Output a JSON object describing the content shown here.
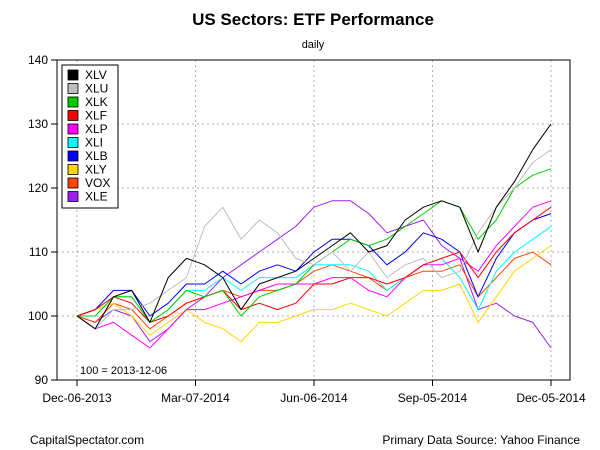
{
  "chart_data": {
    "type": "line",
    "title": "US Sectors: ETF Performance",
    "subtitle": "daily",
    "xlabel": "",
    "ylabel": "",
    "ylim": [
      90,
      140
    ],
    "yticks": [
      90,
      100,
      110,
      120,
      130,
      140
    ],
    "xlim": [
      "2013-12-06",
      "2014-12-05"
    ],
    "xticks": [
      "Dec-06-2013",
      "Mar-07-2014",
      "Jun-06-2014",
      "Sep-05-2014",
      "Dec-05-2014"
    ],
    "grid": true,
    "legend_position": "top-left",
    "baseline_note": "100 = 2013-12-06",
    "x": [
      "2013-12-06",
      "2013-12-20",
      "2014-01-03",
      "2014-01-17",
      "2014-01-31",
      "2014-02-14",
      "2014-02-28",
      "2014-03-14",
      "2014-03-28",
      "2014-04-11",
      "2014-04-25",
      "2014-05-09",
      "2014-05-23",
      "2014-06-06",
      "2014-06-20",
      "2014-07-04",
      "2014-07-18",
      "2014-08-01",
      "2014-08-15",
      "2014-08-29",
      "2014-09-12",
      "2014-09-26",
      "2014-10-10",
      "2014-10-24",
      "2014-11-07",
      "2014-11-21",
      "2014-12-05"
    ],
    "series": [
      {
        "name": "XLV",
        "color": "#000000",
        "values": [
          100,
          98,
          103,
          104,
          99,
          106,
          109,
          108,
          106,
          101,
          105,
          106,
          107,
          109,
          111,
          113,
          110,
          111,
          115,
          117,
          118,
          117,
          110,
          117,
          121,
          126,
          130
        ]
      },
      {
        "name": "XLU",
        "color": "#bebebe",
        "values": [
          100,
          98,
          101,
          101,
          102,
          104,
          106,
          114,
          117,
          112,
          115,
          113,
          109,
          108,
          110,
          107,
          110,
          106,
          108,
          109,
          106,
          107,
          113,
          117,
          120,
          124,
          126
        ]
      },
      {
        "name": "XLK",
        "color": "#00cd00",
        "values": [
          100,
          100,
          103,
          103,
          99,
          101,
          104,
          103,
          104,
          100,
          103,
          104,
          105,
          108,
          110,
          112,
          111,
          112,
          114,
          116,
          118,
          117,
          112,
          115,
          120,
          122,
          123
        ]
      },
      {
        "name": "XLF",
        "color": "#ff0000",
        "values": [
          100,
          101,
          103,
          102,
          99,
          100,
          102,
          103,
          104,
          101,
          102,
          101,
          102,
          105,
          105,
          106,
          106,
          105,
          106,
          108,
          109,
          110,
          106,
          110,
          113,
          115,
          117
        ]
      },
      {
        "name": "XLP",
        "color": "#ff00ff",
        "values": [
          100,
          98,
          99,
          97,
          95,
          98,
          101,
          101,
          102,
          103,
          104,
          105,
          105,
          105,
          106,
          106,
          104,
          103,
          106,
          108,
          108,
          109,
          107,
          111,
          114,
          117,
          118
        ]
      },
      {
        "name": "XLI",
        "color": "#00ffff",
        "values": [
          100,
          100,
          103,
          103,
          99,
          101,
          104,
          104,
          106,
          104,
          106,
          106,
          106,
          108,
          108,
          108,
          107,
          104,
          106,
          108,
          109,
          106,
          101,
          107,
          110,
          112,
          114
        ]
      },
      {
        "name": "XLB",
        "color": "#0000ff",
        "values": [
          100,
          101,
          104,
          104,
          100,
          102,
          105,
          105,
          107,
          105,
          107,
          108,
          107,
          110,
          112,
          112,
          111,
          108,
          110,
          113,
          112,
          110,
          103,
          109,
          113,
          115,
          116
        ]
      },
      {
        "name": "XLY",
        "color": "#ffd700",
        "values": [
          100,
          101,
          102,
          100,
          97,
          99,
          101,
          99,
          98,
          96,
          99,
          99,
          100,
          101,
          101,
          102,
          101,
          100,
          102,
          104,
          104,
          105,
          99,
          103,
          107,
          109,
          111
        ]
      },
      {
        "name": "VOX",
        "color": "#ff4500",
        "values": [
          100,
          99,
          102,
          101,
          98,
          100,
          102,
          103,
          104,
          103,
          104,
          104,
          105,
          107,
          108,
          107,
          106,
          104,
          106,
          107,
          107,
          108,
          103,
          106,
          109,
          110,
          108
        ]
      },
      {
        "name": "XLE",
        "color": "#a020f0",
        "values": [
          100,
          99,
          101,
          100,
          96,
          98,
          101,
          103,
          106,
          108,
          110,
          112,
          114,
          117,
          118,
          118,
          116,
          113,
          114,
          115,
          111,
          109,
          101,
          102,
          100,
          99,
          95
        ]
      }
    ]
  },
  "footer": {
    "left": "CapitalSpectator.com",
    "right": "Primary Data Source: Yahoo Finance"
  }
}
